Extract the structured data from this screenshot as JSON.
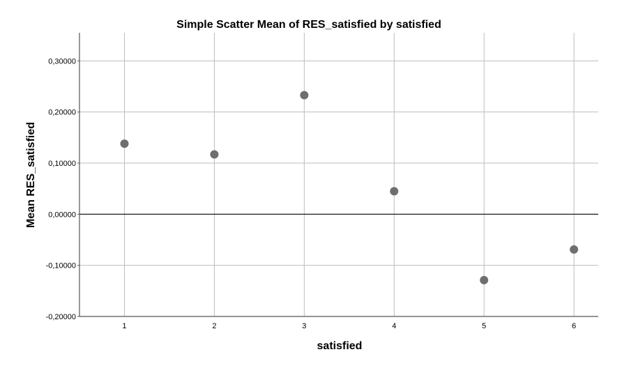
{
  "chart_data": {
    "type": "scatter",
    "title": "Simple Scatter Mean of RES_satisfied by satisfied",
    "xlabel": "satisfied",
    "ylabel": "Mean RES_satisfied",
    "x_ticks": [
      "1",
      "2",
      "3",
      "4",
      "5",
      "6"
    ],
    "y_ticks": [
      "0,30000",
      "0,20000",
      "0,10000",
      "0,00000",
      "-0,10000",
      "-0,20000"
    ],
    "xlim": [
      0.5,
      6.27
    ],
    "ylim": [
      -0.2,
      0.355
    ],
    "grid": true,
    "reference_line_y": 0,
    "series": [
      {
        "x": [
          1,
          2,
          3,
          4,
          5,
          6
        ],
        "y": [
          0.138,
          0.117,
          0.233,
          0.045,
          -0.129,
          -0.069
        ]
      }
    ],
    "colors": {
      "marker": "#6e6e6e",
      "grid": "#bdbdbd",
      "axis": "#555555",
      "refline": "#000000"
    }
  }
}
